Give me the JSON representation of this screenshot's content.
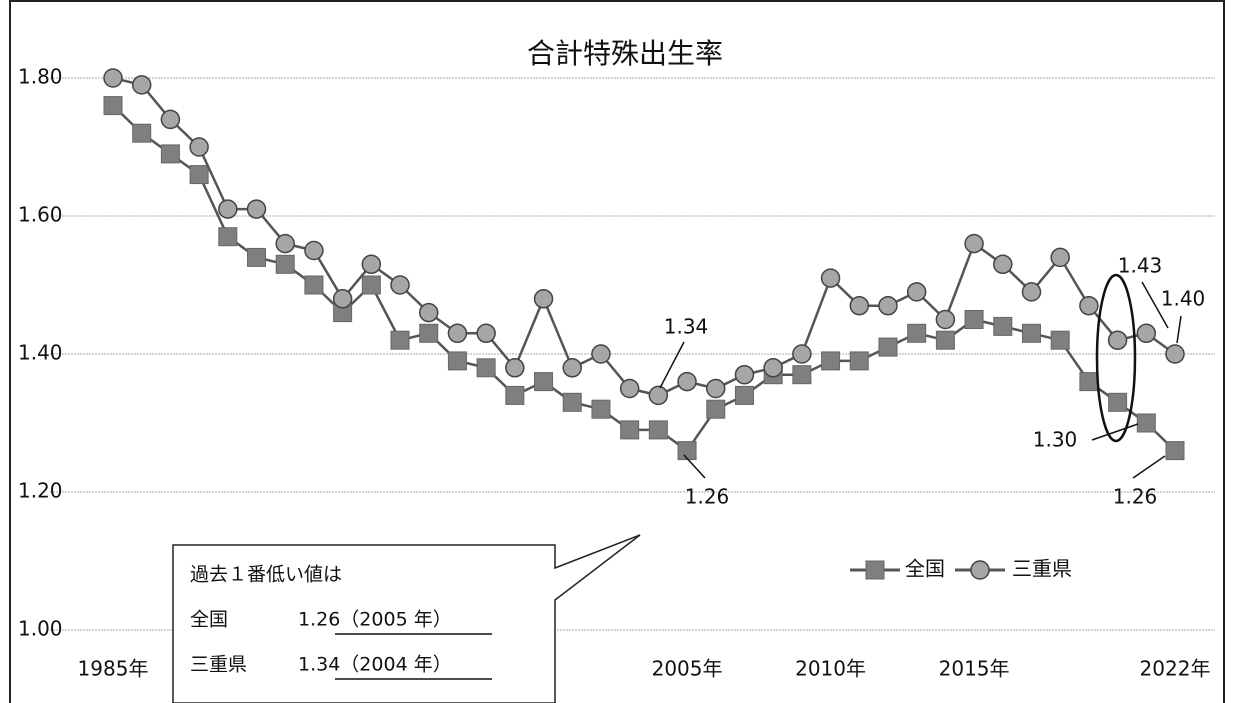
{
  "chart_data": {
    "type": "line",
    "title": "合計特殊出生率",
    "categories": [
      "1985年",
      null,
      null,
      null,
      null,
      null,
      null,
      null,
      null,
      null,
      null,
      null,
      null,
      null,
      null,
      null,
      null,
      null,
      null,
      null,
      "2005年",
      null,
      null,
      null,
      null,
      "2010年",
      null,
      null,
      null,
      null,
      "2015年",
      null,
      null,
      null,
      null,
      null,
      null,
      "2022年"
    ],
    "series": [
      {
        "name": "全国",
        "color": "#7f7f7f",
        "marker": "square",
        "values": [
          1.76,
          1.72,
          1.69,
          1.66,
          1.57,
          1.54,
          1.53,
          1.5,
          1.46,
          1.5,
          1.42,
          1.43,
          1.39,
          1.38,
          1.34,
          1.36,
          1.33,
          1.32,
          1.29,
          1.29,
          1.26,
          1.32,
          1.34,
          1.37,
          1.37,
          1.39,
          1.39,
          1.41,
          1.43,
          1.42,
          1.45,
          1.44,
          1.43,
          1.42,
          1.36,
          1.33,
          1.3,
          1.26
        ]
      },
      {
        "name": "三重県",
        "color": "#a6a6a6",
        "marker": "circle",
        "values": [
          1.8,
          1.79,
          1.74,
          1.7,
          1.61,
          1.61,
          1.56,
          1.55,
          1.48,
          1.53,
          1.5,
          1.46,
          1.43,
          1.43,
          1.38,
          1.48,
          1.38,
          1.4,
          1.35,
          1.34,
          1.36,
          1.35,
          1.37,
          1.38,
          1.4,
          1.51,
          1.47,
          1.47,
          1.49,
          1.45,
          1.56,
          1.53,
          1.49,
          1.54,
          1.47,
          1.42,
          1.43,
          1.4
        ]
      }
    ],
    "ylim": [
      1.0,
      1.8
    ],
    "yticks": [
      {
        "value": 1.0,
        "label": "1.00"
      },
      {
        "value": 1.2,
        "label": "1.20"
      },
      {
        "value": 1.4,
        "label": "1.40"
      },
      {
        "value": 1.6,
        "label": "1.60"
      },
      {
        "value": 1.8,
        "label": "1.80"
      }
    ],
    "grid": true,
    "annotations": [
      "1.34",
      "1.26",
      "1.43",
      "1.40",
      "1.30",
      "1.26"
    ],
    "callout": {
      "heading": "過去１番低い値は",
      "rows": [
        [
          "全国",
          "1.26（2005 年）"
        ],
        [
          "三重県",
          "1.34（2004 年）"
        ]
      ]
    }
  }
}
